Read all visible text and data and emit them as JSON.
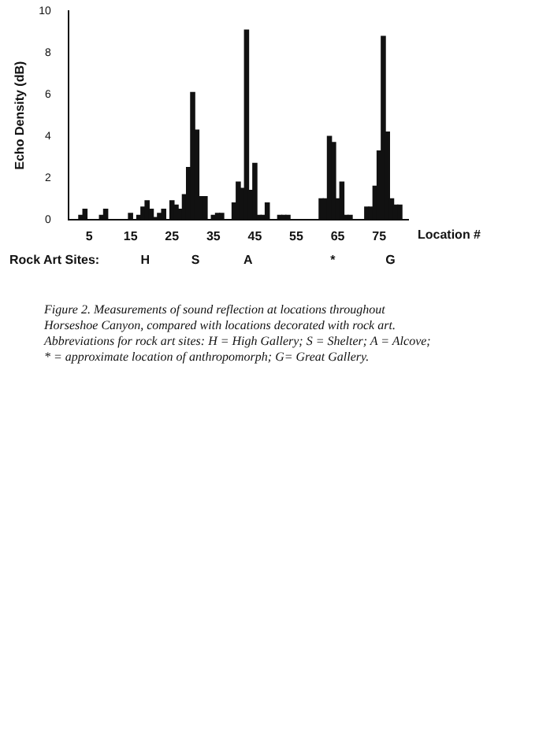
{
  "chart_data": {
    "type": "bar",
    "xlabel": "Location #",
    "ylabel": "Echo Density (dB)",
    "x": [
      3,
      4,
      8,
      9,
      15,
      17,
      18,
      19,
      20,
      21,
      22,
      23,
      25,
      26,
      27,
      28,
      29,
      30,
      31,
      32,
      33,
      35,
      36,
      37,
      40,
      41,
      42,
      43,
      44,
      45,
      46,
      47,
      48,
      51,
      52,
      53,
      61,
      62,
      63,
      64,
      65,
      66,
      67,
      68,
      72,
      73,
      74,
      75,
      76,
      77,
      78,
      79,
      80
    ],
    "values": [
      0.2,
      0.5,
      0.2,
      0.5,
      0.3,
      0.2,
      0.6,
      0.9,
      0.5,
      0.1,
      0.3,
      0.5,
      0.9,
      0.7,
      0.5,
      1.2,
      2.5,
      6.1,
      4.3,
      1.1,
      1.1,
      0.2,
      0.3,
      0.3,
      0.8,
      1.8,
      1.5,
      9.1,
      1.4,
      2.7,
      0.2,
      0.2,
      0.8,
      0.2,
      0.2,
      0.2,
      1.0,
      1.0,
      4.0,
      3.7,
      1.0,
      1.8,
      0.2,
      0.2,
      0.6,
      0.6,
      1.6,
      3.3,
      8.8,
      4.2,
      1.0,
      0.7,
      0.7
    ],
    "color": "#111111",
    "xlim": [
      0,
      82
    ],
    "xticks": [
      5,
      15,
      25,
      35,
      45,
      55,
      65,
      75
    ],
    "ylim": [
      0,
      10
    ],
    "yticks": [
      0,
      2,
      4,
      6,
      8,
      10
    ],
    "grid": false,
    "legend": false,
    "annotations": [
      "Rock Art Sites:",
      "H",
      "S",
      "A",
      "*",
      "G",
      "Figure 2. Measurements of sound reflection at locations throughout Horseshoe Canyon, compared with locations decorated with rock art. Abbreviations for rock art sites: H = High Gallery; S = Shelter; A = Alcove; * = approximate location of anthropomorph; G= Great Gallery."
    ]
  }
}
